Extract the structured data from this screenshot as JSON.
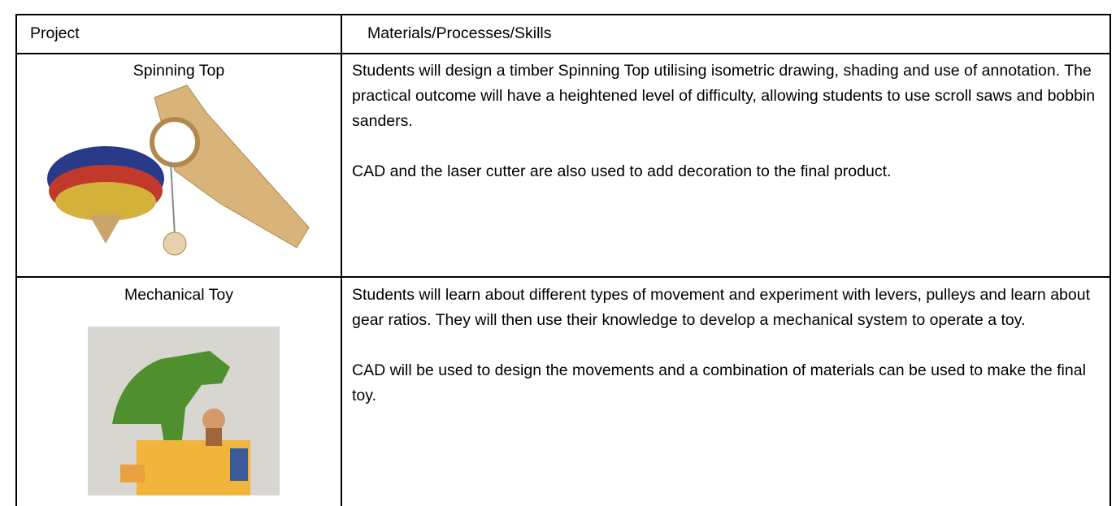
{
  "table": {
    "header": [
      "Project",
      "Materials/Processes/Skills"
    ],
    "rows": [
      {
        "title": "Spinning Top",
        "paragraphs": [
          "Students will design a timber Spinning Top utilising isometric drawing, shading and use of annotation. The practical outcome will have a heightened level of difficulty, allowing students to use scroll saws and bobbin sanders.",
          "CAD and the laser cutter are also used to add decoration to the final product."
        ]
      },
      {
        "title": "Mechanical Toy",
        "paragraphs": [
          "Students will learn about different types of movement and experiment with levers, pulleys and learn about gear ratios. They will then use their knowledge to develop a mechanical system to operate a toy.",
          "CAD will be used to design the movements and a combination of materials can be used to make the final toy."
        ]
      }
    ]
  }
}
